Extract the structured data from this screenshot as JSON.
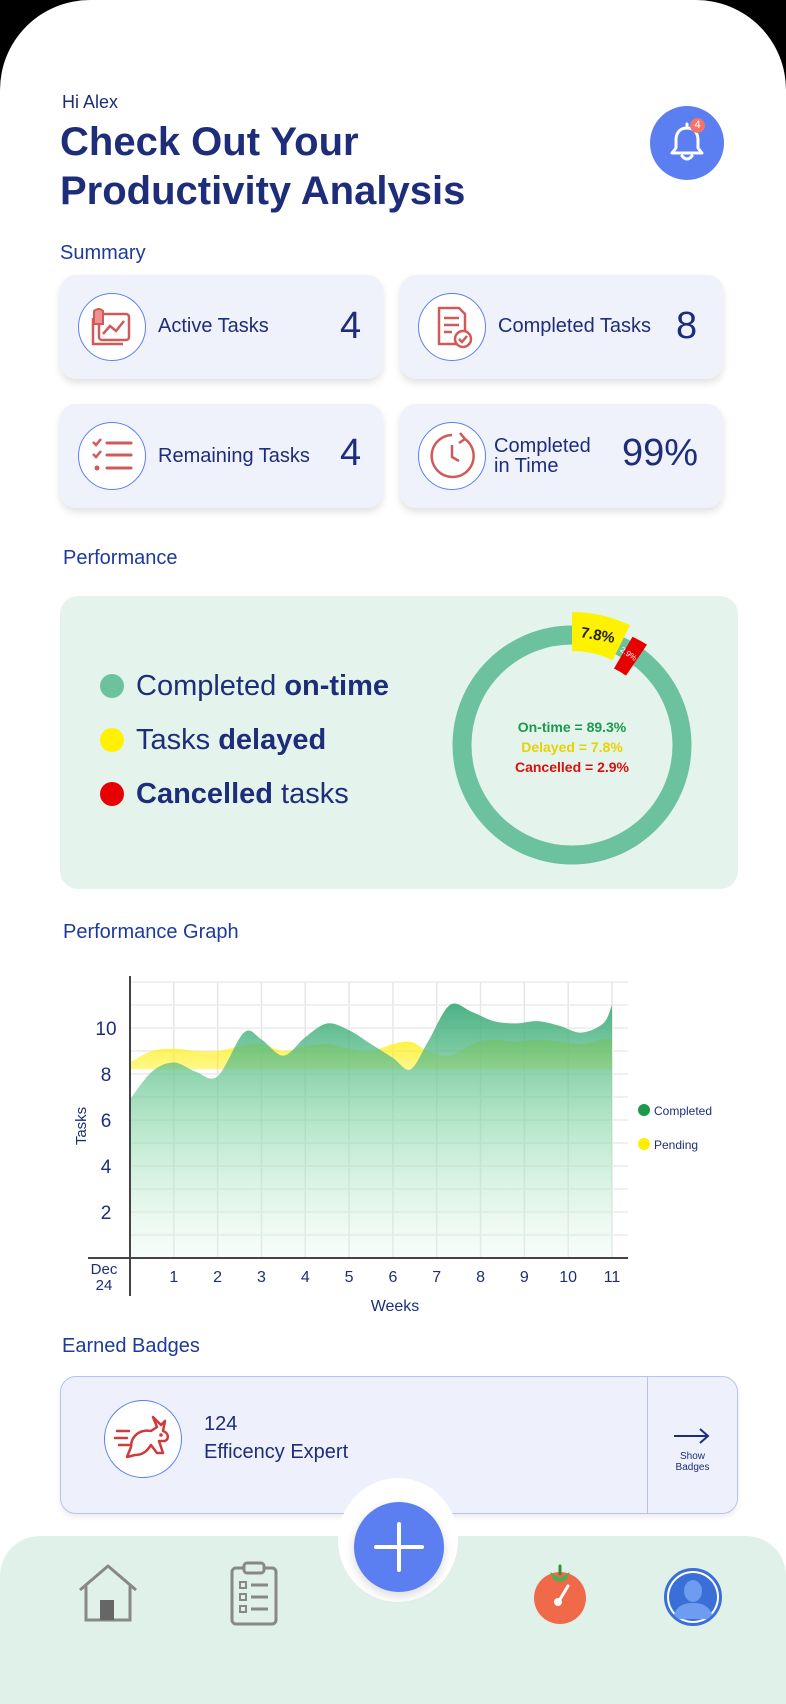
{
  "header": {
    "greeting": "Hi Alex",
    "title": "Check Out Your Productivity Analysis",
    "notification_count": "4"
  },
  "summary": {
    "section_title": "Summary",
    "cards": [
      {
        "label": "Active Tasks",
        "value": "4",
        "icon": "chart-image-icon"
      },
      {
        "label": "Completed Tasks",
        "value": "8",
        "icon": "checked-document-icon"
      },
      {
        "label": "Remaining Tasks",
        "value": "4",
        "icon": "checklist-icon"
      },
      {
        "label_line1": "Completed",
        "label_line2": "in Time",
        "value": "99%",
        "icon": "clock-icon"
      }
    ]
  },
  "performance": {
    "section_title": "Performance",
    "legend": [
      {
        "pre": "Completed ",
        "bold": "on-time",
        "post": "",
        "color": "#6cc29f"
      },
      {
        "pre": "Tasks ",
        "bold": "delayed",
        "post": "",
        "color": "#fff200"
      },
      {
        "pre": "",
        "bold": "Cancelled",
        "post": " tasks",
        "color": "#e60000"
      }
    ],
    "donut_label_delayed": "7.8%",
    "donut_label_cancelled": "2.9%",
    "center_lines": [
      "On-time = 89.3%",
      "Delayed = 7.8%",
      "Cancelled = 2.9%"
    ],
    "colors": {
      "ontime": "#6cc29f",
      "delayed": "#fff200",
      "cancelled": "#e60000"
    }
  },
  "chart_data": {
    "type": "area",
    "xlabel": "Weeks",
    "ylabel": "Tasks",
    "origin_label_line1": "Dec",
    "origin_label_line2": "24",
    "x_ticks": [
      "1",
      "2",
      "3",
      "4",
      "5",
      "6",
      "7",
      "8",
      "9",
      "10",
      "11"
    ],
    "y_ticks": [
      "2",
      "4",
      "6",
      "8",
      "10"
    ],
    "xlim": [
      0,
      11
    ],
    "ylim": [
      0,
      12
    ],
    "series": [
      {
        "name": "Completed",
        "color": "#2e9e6a",
        "x": [
          0,
          0.5,
          1,
          1.5,
          2,
          2.6,
          3,
          3.5,
          4,
          4.5,
          5,
          5.5,
          6,
          6.4,
          6.8,
          7.3,
          7.8,
          8.3,
          8.8,
          9.3,
          9.8,
          10.3,
          10.8,
          11
        ],
        "y": [
          6.9,
          8.1,
          8.5,
          8.1,
          7.9,
          9.8,
          9.5,
          8.8,
          9.6,
          10.2,
          9.9,
          9.3,
          8.7,
          8.2,
          9.4,
          11.0,
          10.7,
          10.3,
          10.2,
          10.3,
          10.1,
          9.8,
          10.2,
          11.0
        ]
      },
      {
        "name": "Pending",
        "color": "#ffee00",
        "x": [
          0,
          0.5,
          1,
          1.5,
          2,
          2.5,
          3,
          3.5,
          4,
          4.5,
          5,
          5.5,
          6,
          6.4,
          6.8,
          7.3,
          7.8,
          8.3,
          8.8,
          9.3,
          9.8,
          10.3,
          10.8,
          11
        ],
        "y": [
          8.5,
          9.0,
          9.1,
          9.0,
          9.0,
          9.2,
          9.3,
          9.0,
          9.2,
          9.3,
          9.1,
          9.0,
          9.3,
          9.4,
          9.0,
          8.8,
          9.3,
          9.5,
          9.4,
          9.5,
          9.4,
          9.3,
          9.5,
          9.5
        ]
      }
    ],
    "legend_position": "right",
    "grid": true
  },
  "chart_section_title": "Performance Graph",
  "badges": {
    "section_title": "Earned Badges",
    "count": "124",
    "name": "Efficency Expert",
    "show_line1": "Show",
    "show_line2": "Badges"
  }
}
